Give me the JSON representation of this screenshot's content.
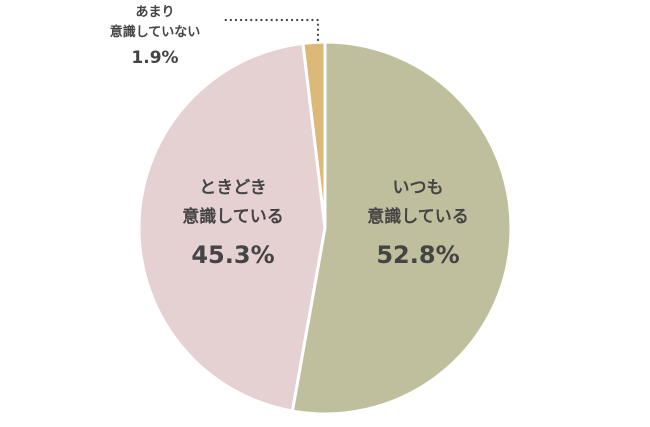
{
  "chart_data": {
    "type": "pie",
    "categories": [
      "いつも\n意識している",
      "ときどき\n意識している",
      "あまり\n意識していない"
    ],
    "values": [
      52.8,
      45.3,
      1.9
    ],
    "value_labels": [
      "52.8%",
      "45.3%",
      "1.9%"
    ],
    "colors": [
      "#bfbf9e",
      "#e5d0d2",
      "#dcb978"
    ]
  }
}
